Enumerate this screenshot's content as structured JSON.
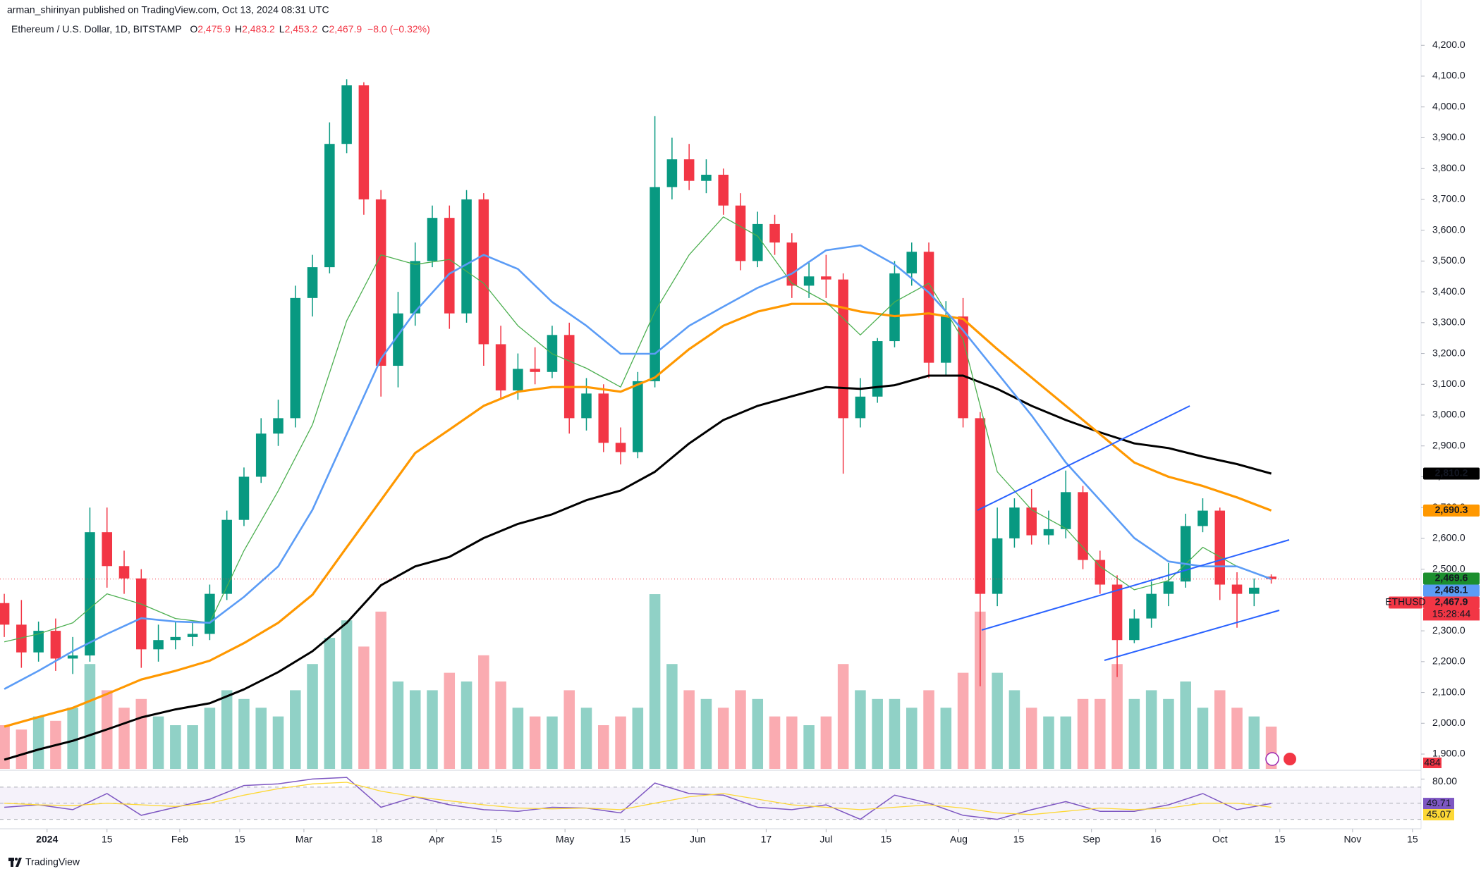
{
  "header": {
    "published": "arman_shirinyan published on TradingView.com, Oct 13, 2024 08:31 UTC"
  },
  "footer": {
    "brand": "TradingView"
  },
  "chart_data": {
    "type": "candlestick",
    "title": "Ethereum / U.S. Dollar, 1D, BITSTAMP",
    "ohlc_legend": [
      {
        "key": "O",
        "label": "2,475.9"
      },
      {
        "key": "H",
        "label": "2,483.2"
      },
      {
        "key": "L",
        "label": "2,453.2"
      },
      {
        "key": "C",
        "label": "2,467.9"
      }
    ],
    "change_label": "−8.0 (−0.32%)",
    "up_color": "#089981",
    "down_color": "#f23645",
    "x": [
      "2023-12-22",
      "2023-12-26",
      "2023-12-30",
      "2024-01-03",
      "2024-01-07",
      "2024-01-11",
      "2024-01-15",
      "2024-01-19",
      "2024-01-23",
      "2024-01-27",
      "2024-01-31",
      "2024-02-04",
      "2024-02-08",
      "2024-02-12",
      "2024-02-16",
      "2024-02-20",
      "2024-02-24",
      "2024-02-28",
      "2024-03-03",
      "2024-03-07",
      "2024-03-11",
      "2024-03-15",
      "2024-03-19",
      "2024-03-23",
      "2024-03-27",
      "2024-03-31",
      "2024-04-04",
      "2024-04-08",
      "2024-04-12",
      "2024-04-16",
      "2024-04-20",
      "2024-04-24",
      "2024-04-28",
      "2024-05-02",
      "2024-05-06",
      "2024-05-10",
      "2024-05-14",
      "2024-05-18",
      "2024-05-22",
      "2024-05-26",
      "2024-05-30",
      "2024-06-03",
      "2024-06-07",
      "2024-06-11",
      "2024-06-15",
      "2024-06-19",
      "2024-06-23",
      "2024-06-27",
      "2024-07-01",
      "2024-07-05",
      "2024-07-09",
      "2024-07-13",
      "2024-07-17",
      "2024-07-21",
      "2024-07-25",
      "2024-07-29",
      "2024-08-02",
      "2024-08-06",
      "2024-08-10",
      "2024-08-14",
      "2024-08-18",
      "2024-08-22",
      "2024-08-26",
      "2024-08-30",
      "2024-09-03",
      "2024-09-07",
      "2024-09-11",
      "2024-09-15",
      "2024-09-19",
      "2024-09-23",
      "2024-09-27",
      "2024-10-01",
      "2024-10-05",
      "2024-10-09",
      "2024-10-13"
    ],
    "open": [
      2390,
      2320,
      2230,
      2300,
      2210,
      2220,
      2620,
      2510,
      2470,
      2240,
      2270,
      2280,
      2290,
      2420,
      2660,
      2800,
      2940,
      2990,
      3380,
      3480,
      3880,
      4070,
      3700,
      3160,
      3330,
      3500,
      3640,
      3330,
      3700,
      3230,
      3080,
      3150,
      3140,
      3260,
      2990,
      3070,
      2910,
      2880,
      3110,
      3740,
      3830,
      3760,
      3780,
      3680,
      3500,
      3620,
      3560,
      3420,
      3450,
      3440,
      2990,
      3060,
      3240,
      3460,
      3530,
      3170,
      3320,
      2990,
      2420,
      2600,
      2700,
      2610,
      2630,
      2750,
      2530,
      2450,
      2270,
      2340,
      2420,
      2460,
      2640,
      2690,
      2450,
      2420,
      2475.9
    ],
    "high": [
      2420,
      2400,
      2330,
      2340,
      2280,
      2700,
      2700,
      2560,
      2500,
      2320,
      2330,
      2330,
      2450,
      2690,
      2830,
      2990,
      3050,
      3420,
      3520,
      3950,
      4090,
      4080,
      3730,
      3400,
      3560,
      3680,
      3680,
      3730,
      3720,
      3290,
      3200,
      3220,
      3290,
      3300,
      3120,
      3100,
      2960,
      3140,
      3970,
      3900,
      3880,
      3830,
      3800,
      3720,
      3660,
      3650,
      3590,
      3500,
      3520,
      3460,
      3120,
      3250,
      3500,
      3560,
      3560,
      3370,
      3380,
      3010,
      2700,
      2730,
      2760,
      2690,
      2820,
      2770,
      2560,
      2480,
      2370,
      2460,
      2520,
      2680,
      2730,
      2700,
      2490,
      2470,
      2483.2
    ],
    "low": [
      2280,
      2180,
      2200,
      2170,
      2160,
      2200,
      2440,
      2420,
      2180,
      2200,
      2240,
      2250,
      2270,
      2400,
      2640,
      2780,
      2900,
      2960,
      3320,
      3460,
      3850,
      3650,
      3060,
      3090,
      3290,
      3480,
      3280,
      3300,
      3160,
      3050,
      3050,
      3100,
      3120,
      2940,
      2950,
      2880,
      2840,
      2860,
      3090,
      3700,
      3730,
      3720,
      3650,
      3470,
      3480,
      3520,
      3380,
      3380,
      3380,
      2810,
      2960,
      3040,
      3220,
      3420,
      3120,
      3130,
      2960,
      2120,
      2380,
      2570,
      2580,
      2580,
      2600,
      2500,
      2420,
      2150,
      2260,
      2310,
      2380,
      2440,
      2620,
      2400,
      2310,
      2380,
      2453.2
    ],
    "close": [
      2320,
      2230,
      2300,
      2210,
      2220,
      2620,
      2510,
      2470,
      2240,
      2270,
      2280,
      2290,
      2420,
      2660,
      2800,
      2940,
      2990,
      3380,
      3480,
      3880,
      4070,
      3700,
      3160,
      3330,
      3500,
      3640,
      3330,
      3700,
      3230,
      3080,
      3150,
      3140,
      3260,
      2990,
      3070,
      2910,
      2880,
      3110,
      3740,
      3830,
      3760,
      3780,
      3680,
      3500,
      3620,
      3560,
      3420,
      3450,
      3440,
      2990,
      3060,
      3240,
      3460,
      3530,
      3170,
      3320,
      2990,
      2420,
      2600,
      2700,
      2610,
      2630,
      2750,
      2530,
      2450,
      2270,
      2340,
      2420,
      2460,
      2640,
      2690,
      2450,
      2420,
      2440,
      2467.9
    ],
    "volume": [
      500,
      450,
      600,
      550,
      700,
      1200,
      900,
      700,
      800,
      600,
      500,
      500,
      700,
      900,
      800,
      700,
      600,
      900,
      1200,
      1500,
      1700,
      1400,
      1800,
      1000,
      900,
      900,
      1100,
      1000,
      1300,
      1000,
      700,
      600,
      600,
      900,
      700,
      500,
      600,
      700,
      2000,
      1200,
      900,
      800,
      700,
      900,
      800,
      600,
      600,
      500,
      600,
      1200,
      900,
      800,
      800,
      700,
      900,
      700,
      1100,
      1800,
      1100,
      900,
      700,
      600,
      600,
      800,
      800,
      1200,
      800,
      900,
      800,
      1000,
      700,
      900,
      700,
      600,
      484
    ],
    "volume_lim": [
      0,
      8800
    ],
    "volume_last_label": "484",
    "xlim": [
      "2023-12-21",
      "2024-11-17"
    ],
    "xticks": [
      {
        "value": "2024-01-01",
        "label": "2024"
      },
      {
        "value": "2024-01-15",
        "label": "15"
      },
      {
        "value": "2024-02-01",
        "label": "Feb"
      },
      {
        "value": "2024-02-15",
        "label": "15"
      },
      {
        "value": "2024-03-01",
        "label": "Mar"
      },
      {
        "value": "2024-03-18",
        "label": "18"
      },
      {
        "value": "2024-04-01",
        "label": "Apr"
      },
      {
        "value": "2024-04-15",
        "label": "15"
      },
      {
        "value": "2024-05-01",
        "label": "May"
      },
      {
        "value": "2024-05-15",
        "label": "15"
      },
      {
        "value": "2024-06-01",
        "label": "Jun"
      },
      {
        "value": "2024-06-17",
        "label": "17"
      },
      {
        "value": "2024-07-01",
        "label": "Jul"
      },
      {
        "value": "2024-07-15",
        "label": "15"
      },
      {
        "value": "2024-08-01",
        "label": "Aug"
      },
      {
        "value": "2024-08-15",
        "label": "15"
      },
      {
        "value": "2024-09-01",
        "label": "Sep"
      },
      {
        "value": "2024-09-16",
        "label": "16"
      },
      {
        "value": "2024-10-01",
        "label": "Oct"
      },
      {
        "value": "2024-10-15",
        "label": "15"
      },
      {
        "value": "2024-11-01",
        "label": "Nov"
      },
      {
        "value": "2024-11-15",
        "label": "15"
      }
    ],
    "ylim": [
      1852,
      4347
    ],
    "yticks": [
      {
        "value": 1900,
        "label": "1,900.0"
      },
      {
        "value": 2000,
        "label": "2,000.0"
      },
      {
        "value": 2100,
        "label": "2,100.0"
      },
      {
        "value": 2200,
        "label": "2,200.0"
      },
      {
        "value": 2300,
        "label": "2,300.0"
      },
      {
        "value": 2400,
        "label": "2,400.0"
      },
      {
        "value": 2500,
        "label": "2,500.0"
      },
      {
        "value": 2600,
        "label": "2,600.0"
      },
      {
        "value": 2700,
        "label": "2,700.0"
      },
      {
        "value": 2800,
        "label": "2,800.0"
      },
      {
        "value": 2900,
        "label": "2,900.0"
      },
      {
        "value": 3000,
        "label": "3,000.0"
      },
      {
        "value": 3100,
        "label": "3,100.0"
      },
      {
        "value": 3200,
        "label": "3,200.0"
      },
      {
        "value": 3300,
        "label": "3,300.0"
      },
      {
        "value": 3400,
        "label": "3,400.0"
      },
      {
        "value": 3500,
        "label": "3,500.0"
      },
      {
        "value": 3600,
        "label": "3,600.0"
      },
      {
        "value": 3700,
        "label": "3,700.0"
      },
      {
        "value": 3800,
        "label": "3,800.0"
      },
      {
        "value": 3900,
        "label": "3,900.0"
      },
      {
        "value": 4000,
        "label": "4,000.0"
      },
      {
        "value": 4100,
        "label": "4,100.0"
      },
      {
        "value": 4200,
        "label": "4,200.0"
      }
    ],
    "grid": false,
    "ma_x": [
      "2023-12-22",
      "2023-12-30",
      "2024-01-07",
      "2024-01-15",
      "2024-01-23",
      "2024-01-31",
      "2024-02-08",
      "2024-02-16",
      "2024-02-24",
      "2024-03-03",
      "2024-03-11",
      "2024-03-19",
      "2024-03-27",
      "2024-04-04",
      "2024-04-12",
      "2024-04-20",
      "2024-04-28",
      "2024-05-06",
      "2024-05-14",
      "2024-05-22",
      "2024-05-30",
      "2024-06-07",
      "2024-06-15",
      "2024-06-23",
      "2024-07-01",
      "2024-07-09",
      "2024-07-17",
      "2024-07-25",
      "2024-08-02",
      "2024-08-10",
      "2024-08-18",
      "2024-08-26",
      "2024-09-03",
      "2024-09-11",
      "2024-09-19",
      "2024-09-27",
      "2024-10-05",
      "2024-10-13"
    ],
    "moving_averages": [
      {
        "color": "#000000",
        "label_text_color": "#ffffff",
        "last_label": "2,810.2",
        "values": [
          1882,
          1915,
          1943,
          1980,
          2019,
          2045,
          2065,
          2110,
          2166,
          2234,
          2326,
          2448,
          2509,
          2540,
          2601,
          2647,
          2678,
          2724,
          2755,
          2816,
          2908,
          2984,
          3030,
          3061,
          3091,
          3085,
          3097,
          3128,
          3128,
          3085,
          3030,
          2984,
          2944,
          2908,
          2893,
          2865,
          2841,
          2810.2
        ]
      },
      {
        "color": "#ff9800",
        "label_text_color": "#131722",
        "last_label": "2,690.3",
        "values": [
          1989,
          2020,
          2050,
          2095,
          2142,
          2170,
          2203,
          2260,
          2326,
          2417,
          2571,
          2724,
          2877,
          2953,
          3030,
          3076,
          3091,
          3091,
          3076,
          3122,
          3214,
          3290,
          3336,
          3361,
          3361,
          3336,
          3321,
          3330,
          3312,
          3214,
          3122,
          3030,
          2938,
          2846,
          2800,
          2770,
          2733,
          2690.3
        ]
      },
      {
        "color": "#1b8f2e",
        "line_color": "#4caf50",
        "label_text_color": "#ffffff",
        "last_label": "2,469.6",
        "values": [
          2264,
          2290,
          2326,
          2420,
          2387,
          2340,
          2326,
          2560,
          2754,
          2969,
          3306,
          3520,
          3489,
          3505,
          3428,
          3290,
          3199,
          3152,
          3091,
          3336,
          3520,
          3643,
          3581,
          3428,
          3367,
          3260,
          3367,
          3428,
          3245,
          2816,
          2693,
          2632,
          2509,
          2433,
          2463,
          2571,
          2509,
          2469.6
        ]
      },
      {
        "color": "#5b9cf6",
        "label_text_color": "#131722",
        "last_label": "2,468.1",
        "values": [
          2111,
          2170,
          2234,
          2290,
          2341,
          2330,
          2326,
          2410,
          2509,
          2693,
          2938,
          3183,
          3336,
          3459,
          3520,
          3474,
          3367,
          3290,
          3199,
          3199,
          3290,
          3352,
          3413,
          3459,
          3535,
          3551,
          3489,
          3398,
          3275,
          3137,
          2999,
          2846,
          2724,
          2601,
          2525,
          2509,
          2509,
          2468.1
        ]
      }
    ],
    "last_price": {
      "label": "2,467.9",
      "symbol": "ETHUSD",
      "countdown": "15:28:44",
      "color": "#f23645"
    },
    "rsi": {
      "ylim": [
        21.8,
        89.1
      ],
      "yticks": [
        {
          "value": 80,
          "label": "80.00"
        }
      ],
      "bands": [
        30,
        50,
        70
      ],
      "series": [
        {
          "color": "#7e57c2",
          "last_label": "49.71",
          "values": [
            45,
            48,
            42,
            62,
            35,
            45,
            55,
            72,
            74,
            80,
            82,
            45,
            58,
            48,
            42,
            40,
            45,
            44,
            38,
            75,
            62,
            60,
            45,
            42,
            48,
            30,
            60,
            50,
            35,
            30,
            42,
            52,
            40,
            40,
            48,
            62,
            42,
            49.71
          ]
        },
        {
          "color": "#fdd835",
          "last_label": "45.07",
          "values": [
            50,
            48,
            47,
            50,
            48,
            46,
            50,
            60,
            68,
            74,
            76,
            65,
            58,
            53,
            48,
            44,
            43,
            44,
            42,
            50,
            58,
            62,
            55,
            48,
            45,
            42,
            45,
            48,
            44,
            38,
            36,
            40,
            44,
            42,
            44,
            50,
            50,
            45.07
          ]
        }
      ]
    }
  }
}
